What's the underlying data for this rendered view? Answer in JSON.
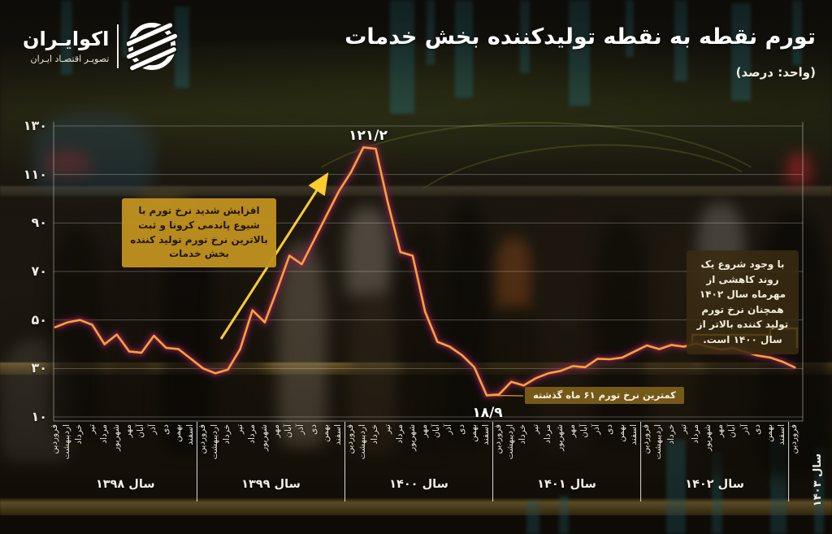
{
  "brand": {
    "name": "اکوایـران",
    "tagline": "تصویـر اقتصـاد ایـران",
    "logo_icon": "striped-globe-icon"
  },
  "header": {
    "title": "تورم نقطه به نقطه تولیدکننده بخش خدمات",
    "unit": "(واحد: درصد)"
  },
  "annotations": {
    "covid_note": "افزایش شدید نرخ تورم با شیوع پاندمی کرونا و ثبت بالاترین نرخ تورم تولید کننده بخش خدمات",
    "trend_note": "با وجود شروع یک روند کاهشی از مهرماه سال ۱۴۰۲ همچنان نرخ تورم تولید کننده بالاتر از سال ۱۴۰۰ است.",
    "low_note": "کمترین نرخ تورم ۶۱ ماه گذشته",
    "peak_label": "۱۲۱/۲",
    "low_label": "۱۸/۹"
  },
  "chart_data": {
    "type": "line",
    "title": "تورم نقطه به نقطه تولیدکننده بخش خدمات",
    "unit": "درصد",
    "ylim": [
      10,
      130
    ],
    "grid": true,
    "yticks": [
      {
        "v": 130,
        "label": "۱۳۰"
      },
      {
        "v": 110,
        "label": "۱۱۰"
      },
      {
        "v": 90,
        "label": "۹۰"
      },
      {
        "v": 70,
        "label": "۷۰"
      },
      {
        "v": 50,
        "label": "۵۰"
      },
      {
        "v": 30,
        "label": "۳۰"
      },
      {
        "v": 10,
        "label": "۱۰"
      }
    ],
    "month_names": [
      "فروردین",
      "اردیبهشت",
      "خرداد",
      "تیر",
      "مرداد",
      "شهریور",
      "مهر",
      "آبان",
      "آذر",
      "دی",
      "بهمن",
      "اسفند"
    ],
    "years": [
      {
        "label": "سال ۱۳۹۸",
        "values": [
          47,
          49,
          50,
          48,
          40,
          44,
          37,
          36.5,
          43.5,
          38.5,
          38,
          34
        ]
      },
      {
        "label": "سال ۱۳۹۹",
        "values": [
          30,
          28,
          29.5,
          38,
          54,
          49,
          62.5,
          76.5,
          73,
          83,
          93,
          103
        ]
      },
      {
        "label": "سال ۱۴۰۰",
        "values": [
          111,
          121.2,
          120.6,
          98,
          78,
          76.5,
          53.5,
          41,
          39,
          35.5,
          30.5,
          18.9
        ]
      },
      {
        "label": "سال ۱۴۰۱",
        "values": [
          19.3,
          24.5,
          23,
          26,
          28,
          29,
          31,
          30.5,
          34,
          33.8,
          34.5,
          37
        ]
      },
      {
        "label": "سال ۱۴۰۲",
        "values": [
          39.5,
          38,
          39.7,
          39,
          40.3,
          39,
          37.8,
          38.4,
          36.8,
          35.3,
          34.5,
          32.8
        ]
      },
      {
        "label": "سال ۱۴۰۳",
        "values": [
          30.4
        ]
      }
    ],
    "peak": {
      "value": 121.2,
      "label": "۱۲۱/۲"
    },
    "low": {
      "value": 18.9,
      "label": "۱۸/۹"
    },
    "colors": {
      "line": "#F7A52B",
      "line_glow": "#8A2060",
      "accent_yellow": "#FFCC2E",
      "note_gold_bg": "#BD9023",
      "note_brown_bg": "#3A2B11"
    },
    "legend": "none"
  }
}
